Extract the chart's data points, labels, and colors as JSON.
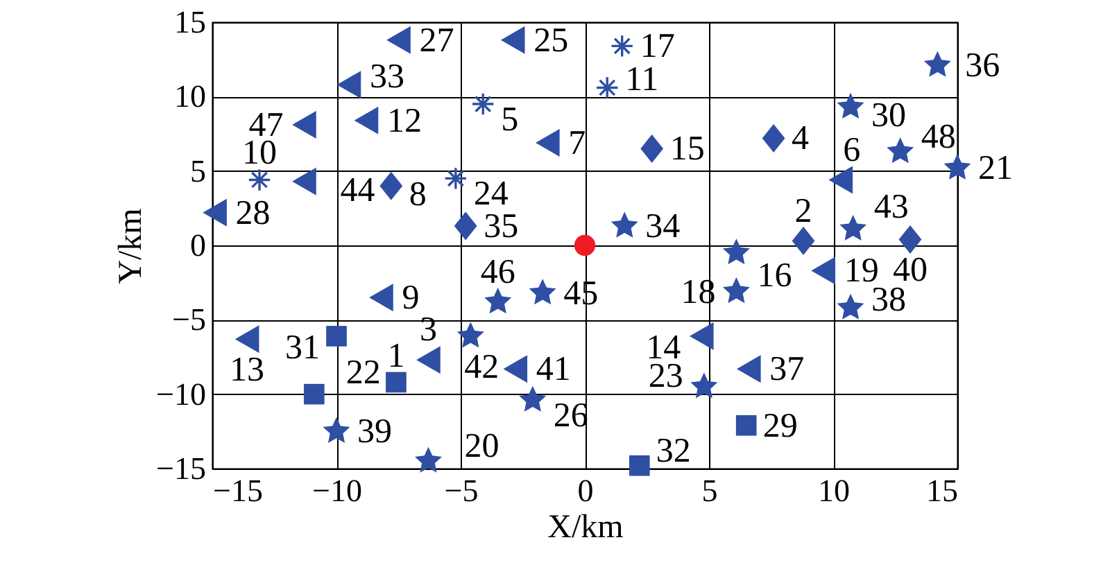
{
  "chart_data": {
    "type": "scatter",
    "xlabel": "X/km",
    "ylabel": "Y/km",
    "xlim": [
      -15,
      15
    ],
    "ylim": [
      -15,
      15
    ],
    "xticks": [
      -15,
      -10,
      -5,
      0,
      5,
      10,
      15
    ],
    "yticks": [
      -15,
      -10,
      -5,
      0,
      5,
      10,
      15
    ],
    "grid": true,
    "series": [
      {
        "color": "#2e4fa3",
        "marker": "triangle",
        "x": [
          -6.3,
          10.3,
          -1.5,
          -8.2,
          -8.8,
          -13.6,
          4.7,
          9.6,
          -2.9,
          -7.5,
          -14.9,
          -9.5,
          6.6,
          -2.8,
          -11.3,
          -11.3
        ],
        "values": [
          -7.7,
          4.4,
          6.9,
          -3.5,
          8.4,
          -6.3,
          -6.1,
          -1.7,
          13.8,
          13.8,
          2.2,
          10.8,
          -8.3,
          -8.3,
          4.3,
          8.1
        ]
      },
      {
        "color": "#2e4fa3",
        "marker": "star",
        "x": [
          6.1,
          6.1,
          -6.3,
          15.0,
          4.8,
          -2.1,
          10.7,
          1.6,
          14.2,
          10.7,
          -10.0,
          -4.6,
          10.8,
          -1.7,
          -3.5,
          12.7
        ],
        "values": [
          -0.5,
          -3.1,
          -14.5,
          5.2,
          -9.5,
          -10.4,
          9.3,
          1.3,
          12.1,
          -4.2,
          -12.5,
          -6.1,
          1.1,
          -3.2,
          -3.8,
          6.3
        ]
      },
      {
        "color": "#2e4fa3",
        "marker": "cross",
        "x": [
          -4.1,
          -13.1,
          0.9,
          1.5,
          -5.2
        ],
        "values": [
          9.5,
          4.4,
          10.6,
          13.4,
          4.5
        ]
      },
      {
        "color": "#2e4fa3",
        "marker": "diamond",
        "x": [
          8.8,
          7.6,
          -7.8,
          2.7,
          -4.8,
          13.1
        ],
        "values": [
          0.3,
          7.2,
          4.0,
          6.5,
          1.3,
          0.4
        ]
      },
      {
        "color": "#2e4fa3",
        "marker": "square",
        "x": [
          -7.6,
          -10.9,
          6.5,
          -10.0,
          2.2
        ],
        "values": [
          -9.2,
          -10.0,
          -12.1,
          -6.1,
          -14.8
        ]
      },
      {
        "color": "#ee1c25",
        "marker": "circle",
        "x": [
          0
        ],
        "values": [
          0
        ]
      }
    ],
    "annotations": [
      {
        "text": "1",
        "x": -7.6,
        "y": -9.2
      },
      {
        "text": "2",
        "x": 8.8,
        "y": 0.3
      },
      {
        "text": "3",
        "x": -6.3,
        "y": -7.7
      },
      {
        "text": "4",
        "x": 7.6,
        "y": 7.2
      },
      {
        "text": "5",
        "x": -4.1,
        "y": 9.5
      },
      {
        "text": "6",
        "x": 10.3,
        "y": 4.4
      },
      {
        "text": "7",
        "x": -1.5,
        "y": 6.9
      },
      {
        "text": "8",
        "x": -7.8,
        "y": 4.0
      },
      {
        "text": "9",
        "x": -8.2,
        "y": -3.5
      },
      {
        "text": "10",
        "x": -13.1,
        "y": 4.4
      },
      {
        "text": "11",
        "x": 0.9,
        "y": 10.6
      },
      {
        "text": "12",
        "x": -8.8,
        "y": 8.4
      },
      {
        "text": "13",
        "x": -13.6,
        "y": -6.3
      },
      {
        "text": "14",
        "x": 4.7,
        "y": -6.1
      },
      {
        "text": "15",
        "x": 2.7,
        "y": 6.5
      },
      {
        "text": "16",
        "x": 6.1,
        "y": -0.5
      },
      {
        "text": "17",
        "x": 1.5,
        "y": 13.4
      },
      {
        "text": "18",
        "x": 6.1,
        "y": -3.1
      },
      {
        "text": "19",
        "x": 9.6,
        "y": -1.7
      },
      {
        "text": "20",
        "x": -6.3,
        "y": -14.5
      },
      {
        "text": "21",
        "x": 15.0,
        "y": 5.2
      },
      {
        "text": "22",
        "x": -10.9,
        "y": -10.0
      },
      {
        "text": "23",
        "x": 4.8,
        "y": -9.5
      },
      {
        "text": "24",
        "x": -5.2,
        "y": 4.5
      },
      {
        "text": "25",
        "x": -2.9,
        "y": 13.8
      },
      {
        "text": "26",
        "x": -2.1,
        "y": -10.4
      },
      {
        "text": "27",
        "x": -7.5,
        "y": 13.8
      },
      {
        "text": "28",
        "x": -14.9,
        "y": 2.2
      },
      {
        "text": "29",
        "x": 6.5,
        "y": -12.1
      },
      {
        "text": "30",
        "x": 10.7,
        "y": 9.3
      },
      {
        "text": "31",
        "x": -10.0,
        "y": -6.1
      },
      {
        "text": "32",
        "x": 2.2,
        "y": -14.8
      },
      {
        "text": "33",
        "x": -9.5,
        "y": 10.8
      },
      {
        "text": "34",
        "x": 1.6,
        "y": 1.3
      },
      {
        "text": "35",
        "x": -4.8,
        "y": 1.3
      },
      {
        "text": "36",
        "x": 14.2,
        "y": 12.1
      },
      {
        "text": "37",
        "x": 6.6,
        "y": -8.3
      },
      {
        "text": "38",
        "x": 10.7,
        "y": -4.2
      },
      {
        "text": "39",
        "x": -10.0,
        "y": -12.5
      },
      {
        "text": "40",
        "x": 13.1,
        "y": 0.4
      },
      {
        "text": "41",
        "x": -2.8,
        "y": -8.3
      },
      {
        "text": "42",
        "x": -4.6,
        "y": -6.1
      },
      {
        "text": "43",
        "x": 10.8,
        "y": 1.1
      },
      {
        "text": "44",
        "x": -11.3,
        "y": 4.3
      },
      {
        "text": "45",
        "x": -1.7,
        "y": -3.2
      },
      {
        "text": "46",
        "x": -3.5,
        "y": -3.8
      },
      {
        "text": "47",
        "x": -11.3,
        "y": 8.1
      },
      {
        "text": "48",
        "x": 12.7,
        "y": 6.3
      }
    ]
  }
}
